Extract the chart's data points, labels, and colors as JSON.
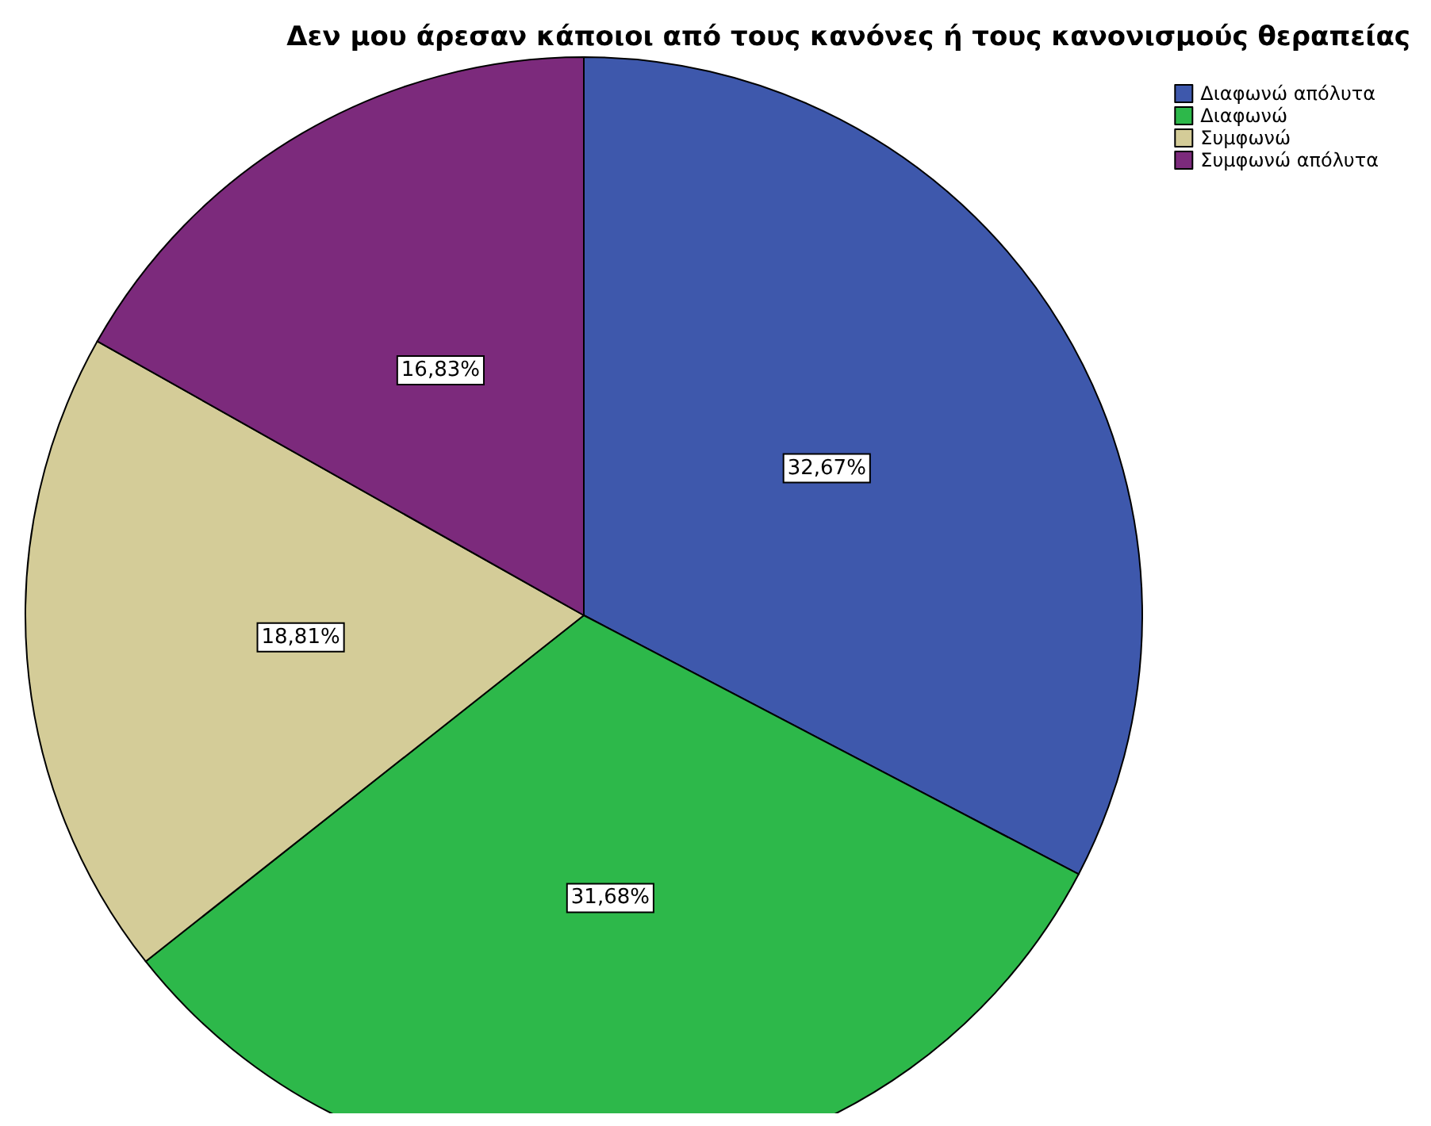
{
  "chart_data": {
    "type": "pie",
    "title": "Δεν μου άρεσαν κάποιοι από τους κανόνες ή τους κανονισμούς θεραπείας",
    "categories": [
      "Διαφωνώ απόλυτα",
      "Διαφωνώ",
      "Συμφωνώ",
      "Συμφωνώ απόλυτα"
    ],
    "values": [
      32.67,
      31.68,
      18.81,
      16.83
    ],
    "colors": [
      "#3e58ac",
      "#2db84a",
      "#d4cc98",
      "#7c2a7c"
    ],
    "value_labels": [
      "32,67%",
      "31,68%",
      "18,81%",
      "16,83%"
    ],
    "legend": "top right"
  }
}
